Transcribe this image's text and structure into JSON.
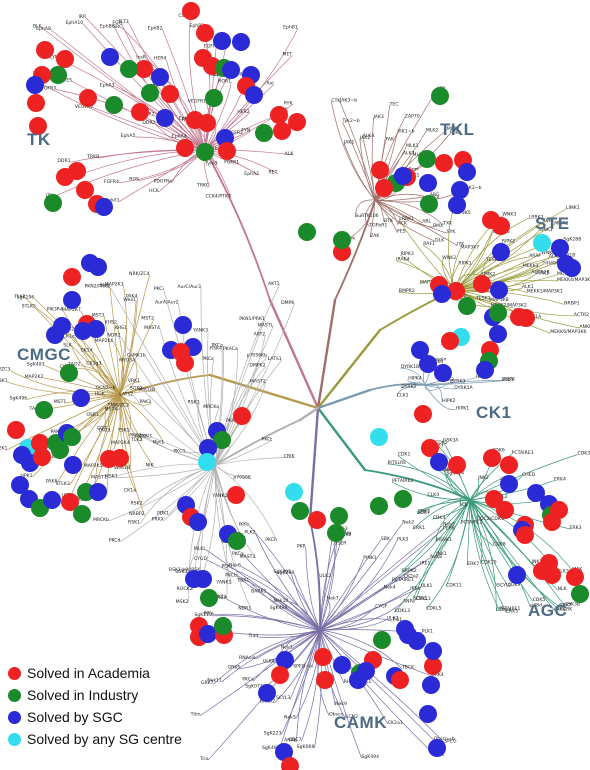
{
  "groups": {
    "tk": "TK",
    "tkl": "TKL",
    "ste": "STE",
    "cmgc": "CMGC",
    "ck1": "CK1",
    "agc": "AGC",
    "camk": "CAMK"
  },
  "colors": {
    "academia": "#ee2222",
    "industry": "#1a8a2a",
    "sgc": "#2a2ad6",
    "any_sg": "#33ddee",
    "tk_branch": "#c2768e",
    "tkl_branch": "#9e6e6a",
    "ste_branch": "#9a9a3a",
    "cmgc_branch": "#b89a50",
    "ck1_branch": "#7a9ab0",
    "agc_branch": "#3a9a7a",
    "camk_branch": "#7a6ea6",
    "other_branch": "#b0b0b0"
  },
  "legend": [
    {
      "label": "Solved in Academia",
      "color_key": "academia"
    },
    {
      "label": "Solved in Industry",
      "color_key": "industry"
    },
    {
      "label": "Solved by SGC",
      "color_key": "sgc"
    },
    {
      "label": "Solved by any SG centre",
      "color_key": "any_sg"
    }
  ],
  "kinase_labels": [
    "TRKC",
    "TRKB",
    "TRKA",
    "MuSK",
    "DDR2",
    "DDR1",
    "ROR2",
    "ROR1",
    "FGFR3",
    "FGFR2",
    "FGFR1",
    "FGFR4",
    "VEGFR1",
    "VEGFR2",
    "PDGFRa",
    "PDGFRb",
    "KIT",
    "FLT3",
    "CSFR",
    "RYK",
    "EphB2",
    "EphB1",
    "EphB3",
    "EphA4",
    "EphA6",
    "EphA5",
    "EphA3",
    "EphA8",
    "EphA2",
    "EphA1",
    "EphA7",
    "EphB4",
    "EphB6",
    "EphA10",
    "Tyro3",
    "Axl",
    "Mer",
    "ROS",
    "HER2",
    "HER3",
    "HER4",
    "EGFR",
    "InsR",
    "IGF1R",
    "IRR",
    "MET",
    "RON",
    "ALK",
    "LTK",
    "RET",
    "CCK4/PTK7",
    "SRC",
    "FGR",
    "YES",
    "LCK",
    "HCK",
    "FYN",
    "LYN",
    "BLK",
    "FRK",
    "Brk",
    "Srm",
    "TEC",
    "TXK",
    "BMX",
    "ITK",
    "BTK",
    "ABL",
    "ARG",
    "CSK",
    "CTK",
    "FES",
    "FER",
    "FAK",
    "PYK2",
    "SYK",
    "ZAP70",
    "TNK1",
    "ACK",
    "JAK1",
    "JAK2",
    "JAK3",
    "Tyk2",
    "JAK1~b",
    "JAK2~b",
    "Tyk2~b",
    "JAK3~b",
    "SuRTK106",
    "MLK3",
    "MLK4",
    "MLK1",
    "MLK2",
    "DLK",
    "LZK",
    "ZAK",
    "ALK4",
    "ALK7",
    "TGFbR1",
    "ALK1",
    "ALK2",
    "BMPR1A",
    "BMPR1B",
    "ACTR2",
    "ACTR2B",
    "BMPR2",
    "TGFbR2",
    "MISR2",
    "KSR",
    "KSR2",
    "ARAF",
    "BRAF",
    "RAF1",
    "ANKRD3",
    "SgK288",
    "RIPK3",
    "RIPK1",
    "RIPK2",
    "IRAK3",
    "IRAK1",
    "IRAK2",
    "IRAK4",
    "LIMK1",
    "LIMK2",
    "TESK1",
    "TESK2",
    "LRRK1",
    "LRRK2",
    "HH498",
    "MOS",
    "SgK495",
    "MEKK2/MAP3K2",
    "MEKK3",
    "MAP3K8",
    "MAP3K5",
    "MAP3K6",
    "MAP3K7",
    "MEKK6/MAP3K6",
    "MEKK4/MAP3K4",
    "MEKK1/MAP3K1",
    "WNK1",
    "WNK3",
    "WNK2",
    "WNK4",
    "NRBP1",
    "NRBP2",
    "COT",
    "NIK",
    "HPK1",
    "KHS1",
    "KHS2",
    "GCK",
    "HGK",
    "TNIK/ZC2",
    "MINK/ZC3",
    "NRK/ZC4",
    "MYO3A",
    "MYO3B",
    "TAO1",
    "TAO2",
    "TAO3",
    "PAK1",
    "PAK2",
    "PAK3",
    "PAK4",
    "PAK5",
    "PAK6",
    "MST1",
    "MST2",
    "MST3",
    "MST4",
    "YSK1",
    "SLK",
    "LOK",
    "OSR1",
    "STLK3",
    "STLK5",
    "MAP2K1",
    "MAP2K2",
    "MAP2K3",
    "MAP2K4",
    "MAP2K5",
    "MAP2K6",
    "MAP2K7",
    "SgK496",
    "GCN2~b",
    "CK1a",
    "CK1d",
    "CK1e",
    "CK1g1",
    "CK1g2",
    "CK1g3",
    "TTBK1",
    "TTBK2",
    "VRK1",
    "VRK2",
    "VRK3",
    "Wee1",
    "Wee1B",
    "Myt1",
    "SgK196",
    "SgK493",
    "SgK396",
    "Slob",
    "PIK3R4",
    "TLK1",
    "TLK2",
    "Haspin",
    "Bub1",
    "DYRK1A",
    "DYRK1B",
    "DYRK2",
    "DYRK3",
    "DYRK4",
    "HIPK1",
    "HIPK2",
    "HIPK3",
    "HIPK4",
    "PRP4",
    "CLK1",
    "CLK2",
    "CLK3",
    "CLK4",
    "SRPK1",
    "SRPK2",
    "MSSK1",
    "GSK3A",
    "GSK3B",
    "CDKL1",
    "CDKL2",
    "CDKL3",
    "CDKL4",
    "CDKL5",
    "ERK1",
    "ERK2",
    "ERK3",
    "ERK4",
    "ERK5",
    "ERK7",
    "NLK",
    "p38a",
    "p38b",
    "p38g",
    "p38d",
    "JNK1",
    "JNK2",
    "JNK3",
    "MAK",
    "ICK",
    "MOK",
    "CDK1",
    "CDK2",
    "CDK3",
    "CDK4",
    "CDK5",
    "CDK6",
    "CDK7",
    "CDK8",
    "CDK9",
    "CDK10",
    "CDK11",
    "CCRK",
    "CRK7",
    "CHED",
    "PITSLRE",
    "PCTAIRE1",
    "PCTAIRE2",
    "PCTAIRE3",
    "PFTAIRE1",
    "PFTAIRE2",
    "CDC2/CDK1",
    "SgK307",
    "SgK424",
    "SCYL1",
    "SCYL2",
    "SCYL3",
    "HRI",
    "PKR",
    "PERK",
    "GCN2",
    "PEK",
    "IRE1",
    "IRE2",
    "RNAseL",
    "CK2a1",
    "CK2a2",
    "CDC7",
    "SgK071",
    "SgK269",
    "SgK223",
    "SgK110",
    "SgK069",
    "PINK1",
    "TBCK",
    "SBK",
    "IKKa",
    "IKKb",
    "IKKe",
    "TBK1",
    "ULK1",
    "ULK2",
    "ULK3",
    "Fused",
    "ULK4",
    "Nek1",
    "Nek2",
    "Nek3",
    "Nek4",
    "Nek5",
    "Nek6",
    "Nek7",
    "Nek8",
    "Nek9",
    "Nek10",
    "Nek11",
    "Trb1",
    "Trb2",
    "Trb3",
    "Obscn",
    "Obscn~b",
    "SPEG",
    "SPEG~b",
    "Titin",
    "Trio",
    "Trad",
    "ANPa",
    "ANPb",
    "HSER",
    "CYGD",
    "CYGF",
    "MLKL",
    "SgK493",
    "SgK494",
    "SgK495",
    "SgK496",
    "PLK1",
    "PLK2",
    "PLK3",
    "PLK4",
    "BARK1",
    "BARK2",
    "GRK4",
    "GRK5",
    "GRK6",
    "GRK7",
    "RHOK/GRK1",
    "PKCa",
    "PKCb",
    "PKCg",
    "PKCd",
    "PKCe",
    "PKCh",
    "PKCi",
    "PKCz",
    "PKCt",
    "PKN1/PRK1",
    "PKN2/PRK2",
    "PKN3",
    "PRKX",
    "PKACa",
    "PKACb",
    "PKG1",
    "PKG2",
    "AKT1",
    "AKT2",
    "AKT3",
    "SGK1",
    "SGK2",
    "SGK3",
    "RSK1",
    "RSK2",
    "RSK3",
    "RSK4",
    "RSK1/p90RSK",
    "MSK1",
    "MSK2",
    "p70S6K",
    "p70S6Kb",
    "PDK1",
    "ROCK1",
    "ROCK2",
    "DMPK",
    "DMPK2",
    "MRCKa",
    "MRCKb",
    "CRIK",
    "LATS1",
    "LATS2",
    "NDR1",
    "NDR2",
    "MAST1",
    "MAST2",
    "MAST3",
    "MAST4",
    "MASTL",
    "YANK1",
    "YANK2",
    "YANK3",
    "AurA/Aur2",
    "AurB/Aur1",
    "AurC/Aur3",
    "CaMK1a",
    "CaMK1b",
    "CaMK1d",
    "CaMK1g",
    "CaMK2a",
    "CaMK2b",
    "CaMK2d",
    "CaMK2g",
    "CaMK4",
    "CaMKK1",
    "CaMKK2",
    "DAPK1",
    "DAPK2",
    "DAPK3",
    "DRAK1",
    "DRAK2",
    "DCAMKL1",
    "DCAMKL2",
    "DCAMKL3",
    "MAPKAPK2",
    "MAPKAPK3",
    "MAPKAPK5",
    "MNK1",
    "MNK2",
    "PKD1",
    "PKD2",
    "PKD3",
    "PHKg1",
    "PHKg2",
    "CHK1",
    "CHK2",
    "AMPKa1",
    "AMPKa2",
    "BRSK1",
    "BRSK2",
    "NuaK1",
    "NuaK2",
    "SIK",
    "QIK",
    "QSK",
    "MARK1",
    "MARK2",
    "MARK3",
    "MARK4",
    "MELK",
    "SNRK",
    "NIM1",
    "SSTK",
    "TSSK1",
    "TSSK2",
    "TSSK3",
    "TSSK4",
    "TSSK6",
    "HUNK",
    "PIM1",
    "PIM2",
    "PIM3",
    "skMLCK",
    "smMLCK",
    "caMLCK",
    "Trad",
    "STK33",
    "PSKH1",
    "PSKH2",
    "Lmr1",
    "Lmr2",
    "Lmr3"
  ]
}
